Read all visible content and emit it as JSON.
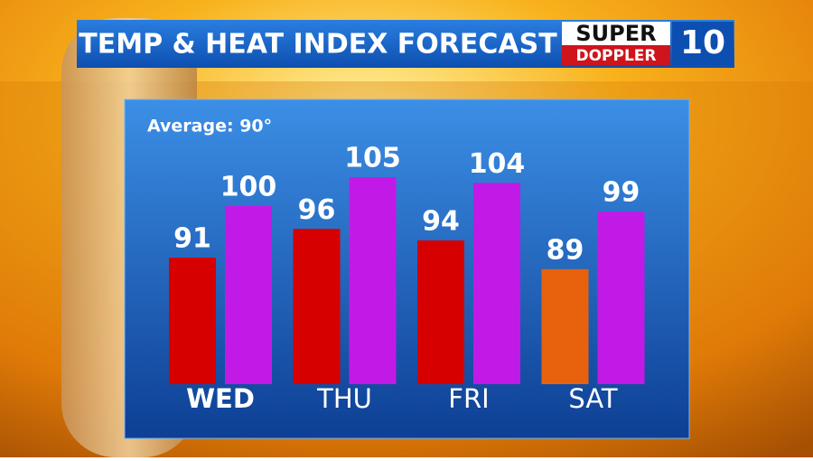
{
  "chart_data": {
    "type": "bar",
    "title": "TEMP & HEAT INDEX FORECAST",
    "annotation": "Average: 90°",
    "logo": {
      "top": "SUPER",
      "bottom": "DOPPLER",
      "number": "10"
    },
    "categories": [
      "WED",
      "THU",
      "FRI",
      "SAT"
    ],
    "series": [
      {
        "color": "#d60000",
        "colors": [
          "#d60000",
          "#d60000",
          "#d60000",
          "#e8620e"
        ],
        "values": [
          91,
          96,
          94,
          89
        ]
      },
      {
        "color": "#c21ae6",
        "values": [
          100,
          105,
          104,
          99
        ]
      }
    ],
    "ylim": [
      69,
      105
    ]
  }
}
